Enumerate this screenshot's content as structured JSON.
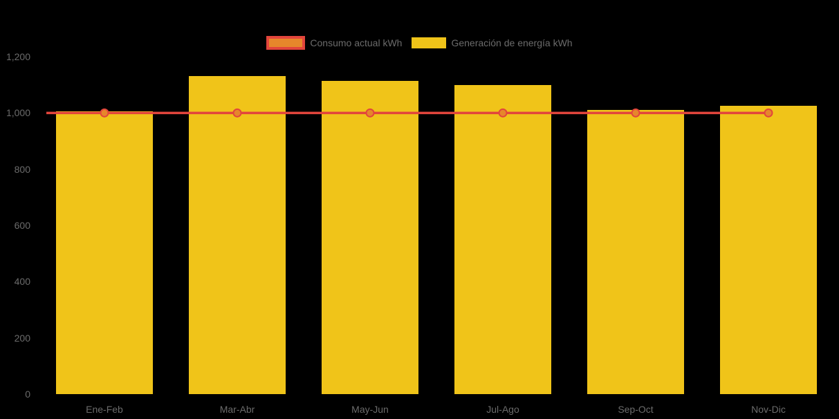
{
  "chart_data": {
    "type": "combo",
    "title": "",
    "xlabel": "",
    "ylabel": "",
    "categories": [
      "Ene-Feb",
      "Mar-Abr",
      "May-Jun",
      "Jul-Ago",
      "Sep-Oct",
      "Nov-Dic"
    ],
    "series": [
      {
        "name": "Consumo actual kWh",
        "type": "line",
        "color": "#E2453C",
        "marker_color": "#E6872B",
        "values": [
          1000,
          1000,
          1000,
          1000,
          1000,
          1000
        ]
      },
      {
        "name": "Generación de energía kWh",
        "type": "bar",
        "color": "#F0C419",
        "values": [
          1005,
          1130,
          1115,
          1100,
          1010,
          1025
        ]
      }
    ],
    "ylim": [
      0,
      1200
    ],
    "yticks": [
      0,
      200,
      400,
      600,
      800,
      1000,
      1200
    ],
    "ytick_labels": [
      "0",
      "200",
      "400",
      "600",
      "800",
      "1,000",
      "1,200"
    ],
    "grid": false,
    "legend_position": "top-center",
    "background_color": "#000000",
    "axis_text_color": "#6B6B6B"
  }
}
